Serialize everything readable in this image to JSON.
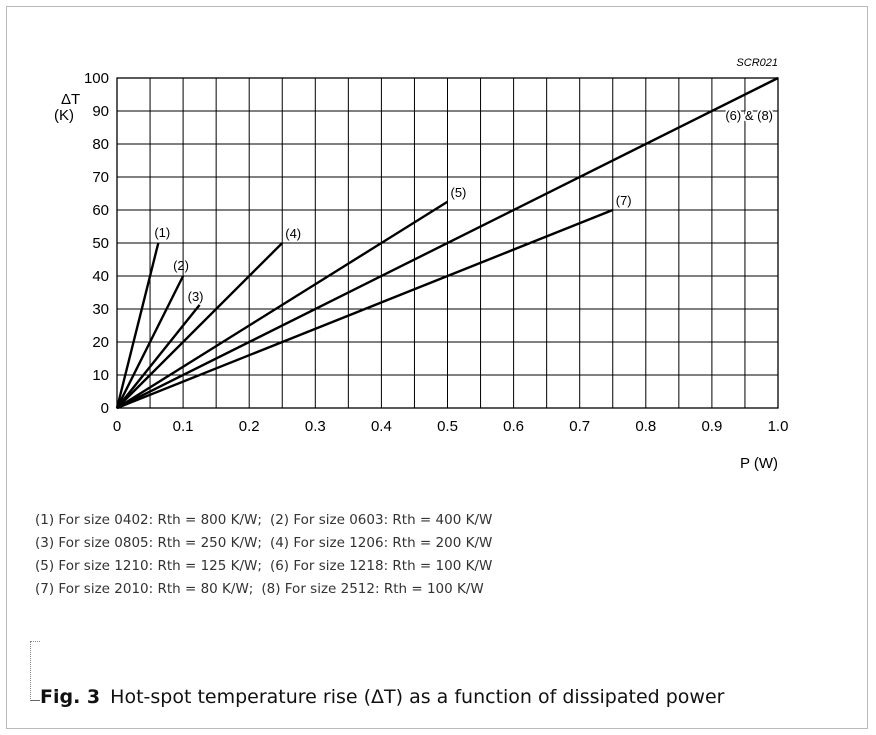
{
  "chart_data": {
    "type": "line",
    "code": "SCR021",
    "ylabel_line1": "ΔT",
    "ylabel_line2": "(K)",
    "xlabel": "P (W)",
    "xlim": [
      0,
      1.0
    ],
    "ylim": [
      0,
      100
    ],
    "x_ticks": [
      "0",
      "0.1",
      "0.2",
      "0.3",
      "0.4",
      "0.5",
      "0.6",
      "0.7",
      "0.8",
      "0.9",
      "1.0"
    ],
    "y_ticks": [
      "0",
      "10",
      "20",
      "30",
      "40",
      "50",
      "60",
      "70",
      "80",
      "90",
      "100"
    ],
    "x_grid_step": 0.05,
    "y_grid_step": 10,
    "grid": true,
    "series": [
      {
        "name": "(1)",
        "x": [
          0,
          0.0625
        ],
        "y": [
          0,
          50
        ]
      },
      {
        "name": "(2)",
        "x": [
          0,
          0.1
        ],
        "y": [
          0,
          40
        ]
      },
      {
        "name": "(3)",
        "x": [
          0,
          0.125
        ],
        "y": [
          0,
          31.25
        ]
      },
      {
        "name": "(4)",
        "x": [
          0,
          0.25
        ],
        "y": [
          0,
          50
        ]
      },
      {
        "name": "(5)",
        "x": [
          0,
          0.5
        ],
        "y": [
          0,
          62.5
        ]
      },
      {
        "name": "(6) & (8)",
        "x": [
          0,
          1.0
        ],
        "y": [
          0,
          100
        ]
      },
      {
        "name": "(7)",
        "x": [
          0,
          0.75
        ],
        "y": [
          0,
          60
        ]
      }
    ]
  },
  "legend": [
    [
      "(1) For size 0402: Rth = 800 K/W;",
      "(2) For size 0603: Rth = 400 K/W"
    ],
    [
      "(3) For size 0805: Rth = 250 K/W;",
      "(4) For size 1206: Rth = 200 K/W"
    ],
    [
      "(5) For size 1210: Rth = 125 K/W;",
      "(6) For size 1218: Rth = 100 K/W"
    ],
    [
      "(7) For size 2010: Rth = 80 K/W;",
      "(8) For size 2512: Rth = 100 K/W"
    ]
  ],
  "caption": {
    "fig_number": "Fig. 3",
    "text": "Hot-spot temperature rise (ΔT) as a function of dissipated power"
  }
}
